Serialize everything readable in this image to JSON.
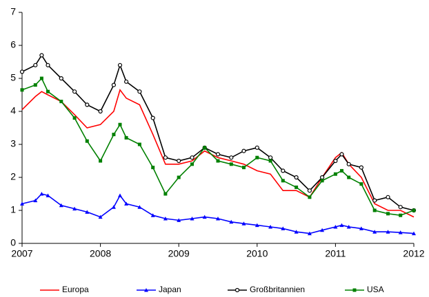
{
  "chart_data": {
    "type": "line",
    "x": [
      2007,
      2007.17,
      2007.25,
      2007.33,
      2007.5,
      2007.67,
      2007.83,
      2008,
      2008.17,
      2008.25,
      2008.33,
      2008.5,
      2008.67,
      2008.83,
      2009,
      2009.17,
      2009.33,
      2009.5,
      2009.67,
      2009.83,
      2010,
      2010.17,
      2010.33,
      2010.5,
      2010.67,
      2010.83,
      2011,
      2011.08,
      2011.17,
      2011.33,
      2011.5,
      2011.67,
      2011.83,
      2012
    ],
    "series": [
      {
        "name": "Europa",
        "color": "#ff0000",
        "marker": "none",
        "values": [
          4.05,
          4.45,
          4.6,
          4.5,
          4.3,
          3.9,
          3.5,
          3.6,
          4.0,
          4.65,
          4.4,
          4.2,
          3.3,
          2.4,
          2.4,
          2.5,
          2.8,
          2.6,
          2.5,
          2.4,
          2.2,
          2.1,
          1.6,
          1.6,
          1.4,
          2.0,
          2.6,
          2.75,
          2.4,
          2.0,
          1.2,
          1.0,
          1.0,
          0.8
        ]
      },
      {
        "name": "Japan",
        "color": "#0000ff",
        "marker": "triangle",
        "values": [
          1.2,
          1.3,
          1.5,
          1.45,
          1.15,
          1.05,
          0.95,
          0.8,
          1.1,
          1.45,
          1.2,
          1.1,
          0.85,
          0.75,
          0.7,
          0.75,
          0.8,
          0.75,
          0.65,
          0.6,
          0.55,
          0.5,
          0.45,
          0.35,
          0.3,
          0.4,
          0.5,
          0.55,
          0.5,
          0.45,
          0.35,
          0.35,
          0.33,
          0.3
        ]
      },
      {
        "name": "Großbritannien",
        "color": "#000000",
        "marker": "circle",
        "values": [
          5.2,
          5.4,
          5.7,
          5.4,
          5.0,
          4.6,
          4.2,
          4.0,
          4.8,
          5.4,
          4.9,
          4.6,
          3.8,
          2.6,
          2.5,
          2.6,
          2.9,
          2.7,
          2.6,
          2.8,
          2.9,
          2.6,
          2.2,
          2.0,
          1.6,
          2.0,
          2.5,
          2.7,
          2.4,
          2.3,
          1.3,
          1.4,
          1.1,
          1.0
        ]
      },
      {
        "name": "USA",
        "color": "#008000",
        "marker": "square",
        "values": [
          4.65,
          4.8,
          5.0,
          4.6,
          4.3,
          3.8,
          3.1,
          2.5,
          3.3,
          3.6,
          3.2,
          3.0,
          2.3,
          1.5,
          2.0,
          2.4,
          2.9,
          2.5,
          2.4,
          2.3,
          2.6,
          2.5,
          1.9,
          1.7,
          1.4,
          1.9,
          2.1,
          2.2,
          2.0,
          1.8,
          1.0,
          0.9,
          0.85,
          1.0
        ]
      }
    ],
    "xlim": [
      2007,
      2012
    ],
    "xticks": [
      2007,
      2008,
      2009,
      2010,
      2011,
      2012
    ],
    "ylim": [
      0,
      7
    ],
    "yticks": [
      0,
      1,
      2,
      3,
      4,
      5,
      6,
      7
    ],
    "grid": false,
    "legend": "bottom"
  }
}
